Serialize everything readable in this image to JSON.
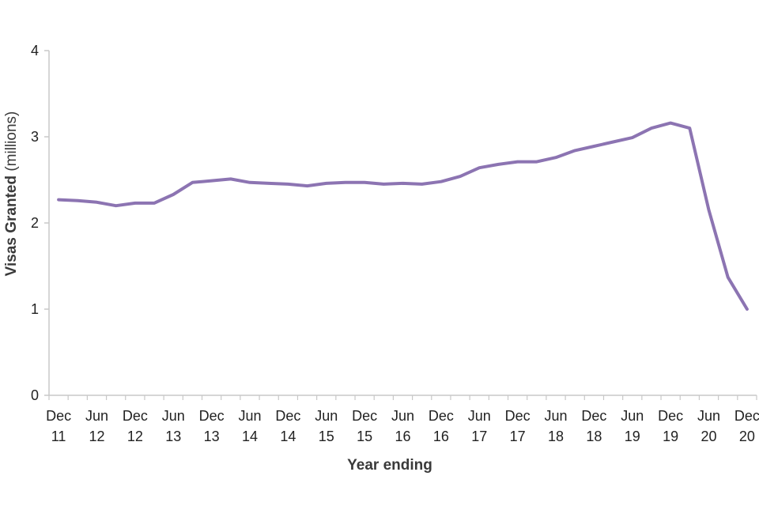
{
  "chart_data": {
    "type": "line",
    "title": "",
    "xlabel": "Year ending",
    "ylabel": "Visas Granted",
    "ylabel_unit": "(millions)",
    "ylim": [
      0,
      4
    ],
    "yticks": [
      "0",
      "1",
      "2",
      "3",
      "4"
    ],
    "grid": false,
    "legend": "none",
    "x_tick_labels": [
      [
        "Dec",
        "11"
      ],
      [
        "Jun",
        "12"
      ],
      [
        "Dec",
        "12"
      ],
      [
        "Jun",
        "13"
      ],
      [
        "Dec",
        "13"
      ],
      [
        "Jun",
        "14"
      ],
      [
        "Dec",
        "14"
      ],
      [
        "Jun",
        "15"
      ],
      [
        "Dec",
        "15"
      ],
      [
        "Jun",
        "16"
      ],
      [
        "Dec",
        "16"
      ],
      [
        "Jun",
        "17"
      ],
      [
        "Dec",
        "17"
      ],
      [
        "Jun",
        "18"
      ],
      [
        "Dec",
        "18"
      ],
      [
        "Jun",
        "19"
      ],
      [
        "Dec",
        "19"
      ],
      [
        "Jun",
        "20"
      ],
      [
        "Dec",
        "20"
      ]
    ],
    "series": [
      {
        "color": "#8c74b2",
        "values": [
          2.27,
          2.26,
          2.24,
          2.2,
          2.23,
          2.23,
          2.33,
          2.47,
          2.49,
          2.51,
          2.47,
          2.46,
          2.45,
          2.43,
          2.46,
          2.47,
          2.47,
          2.45,
          2.46,
          2.45,
          2.48,
          2.54,
          2.64,
          2.68,
          2.71,
          2.71,
          2.76,
          2.84,
          2.89,
          2.94,
          2.99,
          3.1,
          3.16,
          3.1,
          2.15,
          1.37,
          1.0
        ]
      }
    ]
  }
}
